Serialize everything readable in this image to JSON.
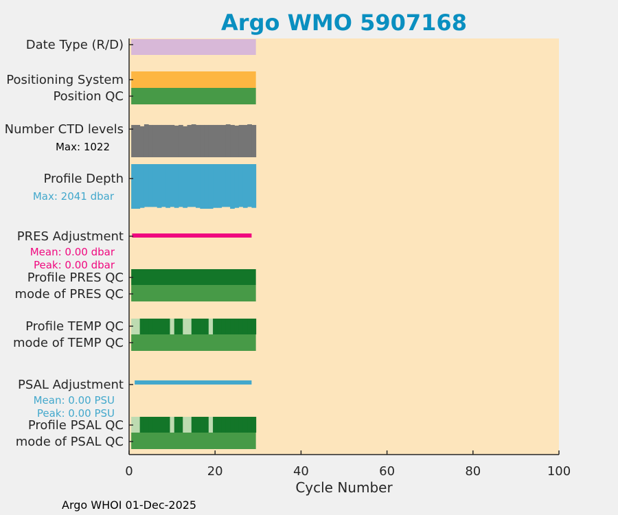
{
  "chart_data": {
    "type": "bar",
    "title": "Argo WMO 5907168",
    "xlabel": "Cycle Number",
    "xlim": [
      0,
      100
    ],
    "xticks": [
      0,
      20,
      40,
      60,
      80,
      100
    ],
    "footer": "Argo WHOI 01-Dec-2025",
    "cycles": [
      1,
      29
    ],
    "colors": {
      "title": "#0a8fc0",
      "background": "#fde5bc",
      "date_type": "#d8b8d8",
      "positioning": "#fdb642",
      "qc_good": "#479a47",
      "qc_dark": "#137629",
      "qc_light": "#bddbb1",
      "ctd": "#757575",
      "depth": "#43a8cc",
      "pres_adj": "#f0087f",
      "psal_adj": "#43a8cc"
    },
    "rows": {
      "date_type": "Date Type (R/D)",
      "positioning": "Positioning System",
      "position_qc": "Position QC",
      "ctd_levels": "Number CTD levels",
      "ctd_max": "Max: 1022",
      "profile_depth": "Profile Depth",
      "depth_max": "Max: 2041 dbar",
      "pres_adj": "PRES Adjustment",
      "pres_mean": "Mean: 0.00 dbar",
      "pres_peak": "Peak: 0.00 dbar",
      "profile_pres_qc": "Profile PRES QC",
      "mode_pres_qc": "mode of PRES QC",
      "profile_temp_qc": "Profile TEMP QC",
      "mode_temp_qc": "mode of TEMP QC",
      "psal_adj": "PSAL Adjustment",
      "psal_mean": "Mean: 0.00 PSU",
      "psal_peak": "Peak: 0.00 PSU",
      "profile_psal_qc": "Profile PSAL QC",
      "mode_psal_qc": "mode of PSAL QC"
    },
    "ctd_levels_relative": [
      0.98,
      0.98,
      0.94,
      1.0,
      0.98,
      0.98,
      0.98,
      0.98,
      0.98,
      0.98,
      0.96,
      0.98,
      0.94,
      0.98,
      1.0,
      0.98,
      0.98,
      0.98,
      0.98,
      0.98,
      0.98,
      0.98,
      1.0,
      0.98,
      0.96,
      0.98,
      0.98,
      1.0,
      0.98
    ],
    "depth_relative": [
      1.0,
      1.0,
      0.98,
      0.96,
      0.96,
      0.96,
      0.98,
      0.96,
      0.98,
      0.96,
      0.98,
      0.96,
      0.98,
      0.96,
      0.96,
      0.98,
      1.0,
      1.0,
      1.0,
      0.98,
      0.98,
      0.96,
      0.96,
      1.0,
      0.98,
      0.96,
      0.98,
      0.96,
      0.98
    ],
    "temp_qc_light_cycles": [
      1,
      2,
      10,
      13,
      14,
      19
    ],
    "psal_qc_light_cycles": [
      1,
      2,
      10,
      13,
      14,
      19
    ]
  }
}
